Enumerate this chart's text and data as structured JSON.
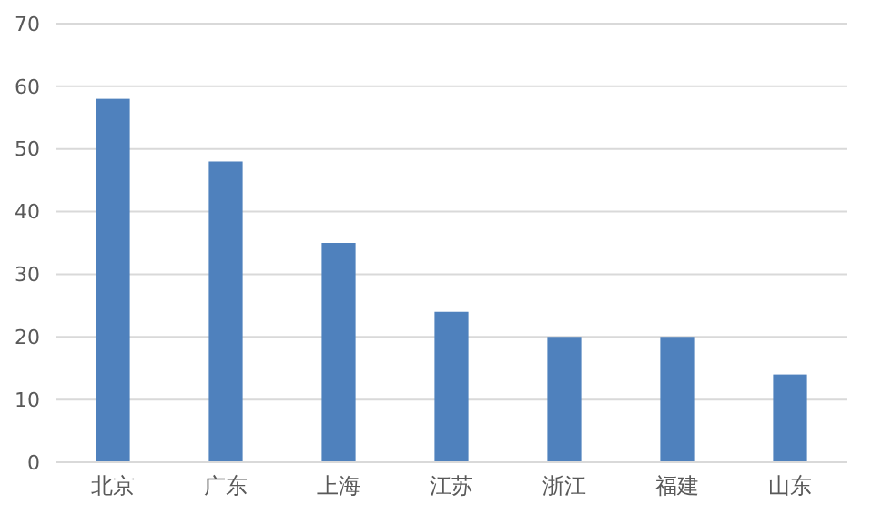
{
  "chart_data": {
    "type": "bar",
    "categories": [
      "北京",
      "广东",
      "上海",
      "江苏",
      "浙江",
      "福建",
      "山东"
    ],
    "values": [
      58,
      48,
      35,
      24,
      20,
      20,
      14
    ],
    "color": "#4f81bd",
    "ylim": [
      0,
      70
    ],
    "yticks": [
      0,
      10,
      20,
      30,
      40,
      50,
      60,
      70
    ],
    "grid": "y"
  }
}
